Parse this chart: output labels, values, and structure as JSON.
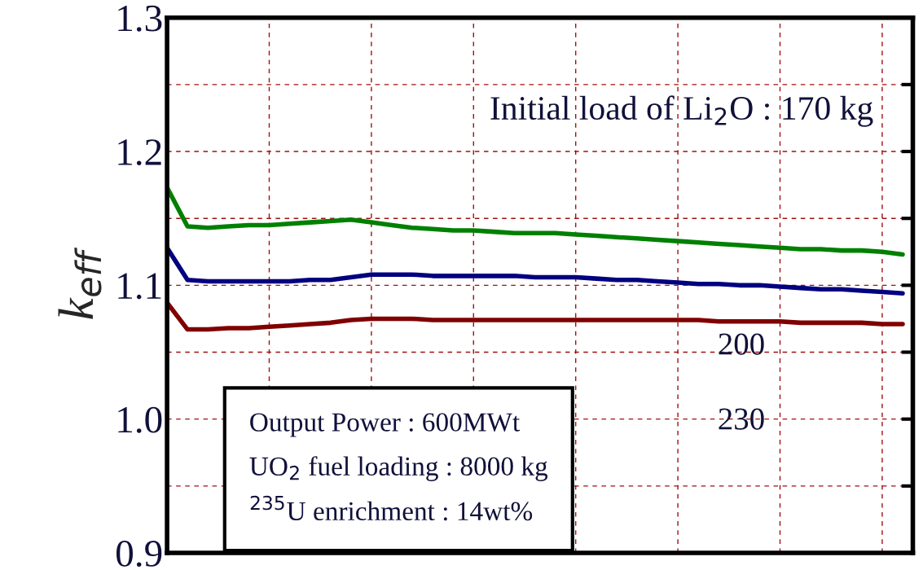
{
  "chart_data": {
    "type": "line",
    "ylabel": "k$_{eff}$",
    "annotations": [
      "Initial load of Li$_{2}$O : 170 kg",
      "200",
      "230",
      "Output Power : 600MWt\nUO$_{2}$ fuel loading : 8000 kg\n$^{235}$U enrichment : 14wt%"
    ],
    "categories": [
      null,
      null,
      null,
      null,
      null,
      null,
      null,
      null,
      null,
      null,
      null,
      null,
      null,
      null,
      null,
      null,
      null,
      null,
      null,
      null,
      null,
      null,
      null,
      null,
      null,
      null,
      null,
      null,
      null,
      null,
      null,
      null,
      null,
      null,
      null,
      null,
      null
    ],
    "series": [
      {
        "color": "#008000",
        "values": [
          1.173,
          1.144,
          1.143,
          1.144,
          1.145,
          1.145,
          1.146,
          1.147,
          1.148,
          1.149,
          1.147,
          1.145,
          1.143,
          1.142,
          1.141,
          1.141,
          1.14,
          1.139,
          1.139,
          1.139,
          1.138,
          1.137,
          1.136,
          1.135,
          1.134,
          1.133,
          1.132,
          1.131,
          1.13,
          1.129,
          1.128,
          1.127,
          1.127,
          1.126,
          1.126,
          1.125,
          1.123
        ]
      },
      {
        "color": "#000080",
        "values": [
          1.128,
          1.104,
          1.103,
          1.103,
          1.103,
          1.103,
          1.103,
          1.104,
          1.104,
          1.106,
          1.108,
          1.108,
          1.108,
          1.107,
          1.107,
          1.107,
          1.107,
          1.107,
          1.106,
          1.106,
          1.106,
          1.105,
          1.104,
          1.104,
          1.103,
          1.102,
          1.101,
          1.101,
          1.1,
          1.1,
          1.099,
          1.098,
          1.097,
          1.097,
          1.096,
          1.095,
          1.094
        ]
      },
      {
        "color": "#800000",
        "values": [
          1.087,
          1.067,
          1.067,
          1.068,
          1.068,
          1.069,
          1.07,
          1.071,
          1.072,
          1.074,
          1.075,
          1.075,
          1.075,
          1.074,
          1.074,
          1.074,
          1.074,
          1.074,
          1.074,
          1.074,
          1.074,
          1.074,
          1.074,
          1.074,
          1.074,
          1.074,
          1.074,
          1.073,
          1.073,
          1.073,
          1.073,
          1.072,
          1.072,
          1.072,
          1.072,
          1.071,
          1.071
        ]
      }
    ],
    "ylim": [
      0.9,
      1.3
    ],
    "yticks": [
      0.9,
      {
        "value": 0.95,
        "label": null
      },
      {
        "value": 1,
        "label": "1.0"
      },
      {
        "value": 1.05,
        "label": null
      },
      1.1,
      {
        "value": 1.15,
        "label": null
      },
      1.2,
      {
        "value": 1.25,
        "label": null
      },
      1.3
    ],
    "grid": true,
    "tick_labels": "y"
  }
}
